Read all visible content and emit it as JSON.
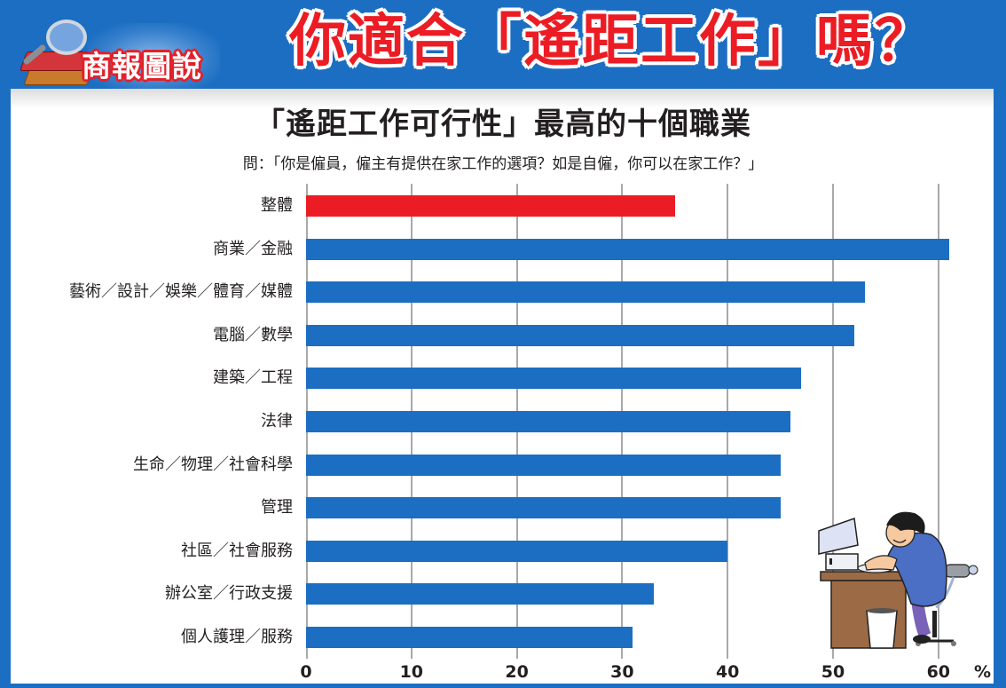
{
  "header": {
    "logo_text": "商報圖說",
    "headline": "你適合「遙距工作」嗎？"
  },
  "chart_data": {
    "type": "bar",
    "orientation": "horizontal",
    "title": "「遙距工作可行性」最高的十個職業",
    "subtitle": "問：「你是僱員，僱主有提供在家工作的選項？如是自僱，你可以在家工作？」",
    "xlabel": "%",
    "ylabel": "",
    "xlim": [
      0,
      60
    ],
    "xticks": [
      0,
      10,
      20,
      30,
      40,
      50,
      60
    ],
    "grid": true,
    "legend": null,
    "categories": [
      "整體",
      "商業／金融",
      "藝術／設計／娛樂／體育／媒體",
      "電腦／數學",
      "建築／工程",
      "法律",
      "生命／物理／社會科學",
      "管理",
      "社區／社會服務",
      "辦公室／行政支援",
      "個人護理／服務"
    ],
    "values": [
      35,
      61,
      53,
      52,
      47,
      46,
      45,
      45,
      40,
      33,
      31
    ],
    "colors": [
      "#ec1c24",
      "#1b6ec2",
      "#1b6ec2",
      "#1b6ec2",
      "#1b6ec2",
      "#1b6ec2",
      "#1b6ec2",
      "#1b6ec2",
      "#1b6ec2",
      "#1b6ec2",
      "#1b6ec2"
    ],
    "highlight_color": "#ec1c24",
    "bar_color": "#1b6ec2"
  },
  "axis": {
    "tick_labels": [
      "0",
      "10",
      "20",
      "30",
      "40",
      "50",
      "60"
    ],
    "unit": "%"
  },
  "illustration": {
    "icon": "person-at-computer-icon"
  }
}
